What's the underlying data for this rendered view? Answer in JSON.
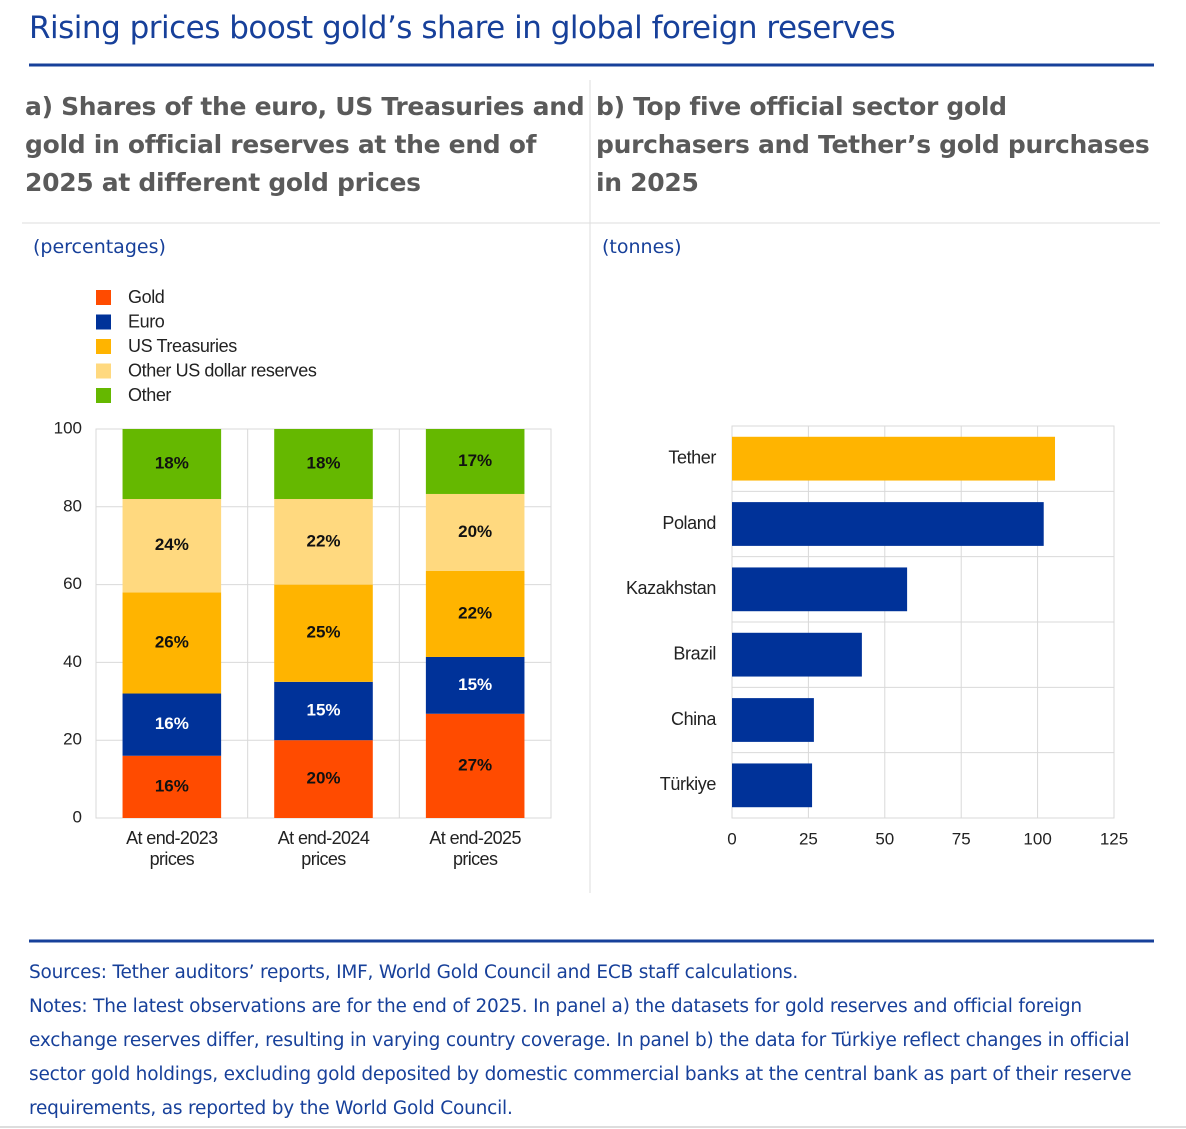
{
  "title": "Rising prices boost gold’s share in global foreign reserves",
  "chart_data": [
    {
      "type": "stacked_bar",
      "title": "a) Shares of the euro, US Treasuries and gold in official reserves at the end of 2025 at different gold prices",
      "unit": "(percentages)",
      "categories": [
        "At end-2023 prices",
        "At end-2024 prices",
        "At end-2025 prices"
      ],
      "series": [
        {
          "name": "Gold",
          "color": "#ff4b00",
          "values": [
            16,
            20,
            26.8
          ],
          "value_labels": [
            "16%",
            "20%",
            "27%"
          ]
        },
        {
          "name": "Euro",
          "color": "#003299",
          "values": [
            16,
            15,
            14.6
          ],
          "value_labels": [
            "16%",
            "15%",
            "15%"
          ]
        },
        {
          "name": "US Treasuries",
          "color": "#ffb400",
          "values": [
            26,
            25,
            22.1
          ],
          "value_labels": [
            "26%",
            "25%",
            "22%"
          ]
        },
        {
          "name": "Other US dollar reserves",
          "color": "#ffd97f",
          "values": [
            24,
            22,
            19.8
          ],
          "value_labels": [
            "24%",
            "22%",
            "20%"
          ]
        },
        {
          "name": "Other",
          "color": "#65b800",
          "values": [
            18,
            18,
            16.7
          ],
          "value_labels": [
            "18%",
            "18%",
            "17%"
          ]
        }
      ],
      "ylim": [
        0,
        100
      ],
      "yticks": [
        0,
        20,
        40,
        60,
        80,
        100
      ],
      "grid": true,
      "legend": "top-left"
    },
    {
      "type": "hbar",
      "title": "b) Top five official sector gold purchasers and Tether’s gold purchases in 2025",
      "unit": "(tonnes)",
      "categories": [
        "Tether",
        "Poland",
        "Kazakhstan",
        "Brazil",
        "China",
        "Türkiye"
      ],
      "values": [
        105.7,
        102,
        57.3,
        42.5,
        26.8,
        26.2
      ],
      "colors": [
        "#ffb400",
        "#003299",
        "#003299",
        "#003299",
        "#003299",
        "#003299"
      ],
      "xlim": [
        0,
        125
      ],
      "xticks": [
        0,
        25,
        50,
        75,
        100,
        125
      ],
      "grid": true
    }
  ],
  "sources": "Sources: Tether auditors’ reports, IMF, World Gold Council and ECB staff calculations.",
  "notes": "Notes: The latest observations are for the end of 2025. In panel a) the datasets for gold reserves and official foreign exchange reserves differ, resulting in varying country coverage. In panel b) the data for Türkiye reflect changes in official sector gold holdings, excluding gold deposited by domestic commercial banks at the central bank as part of their reserve requirements, as reported by the World Gold Council."
}
